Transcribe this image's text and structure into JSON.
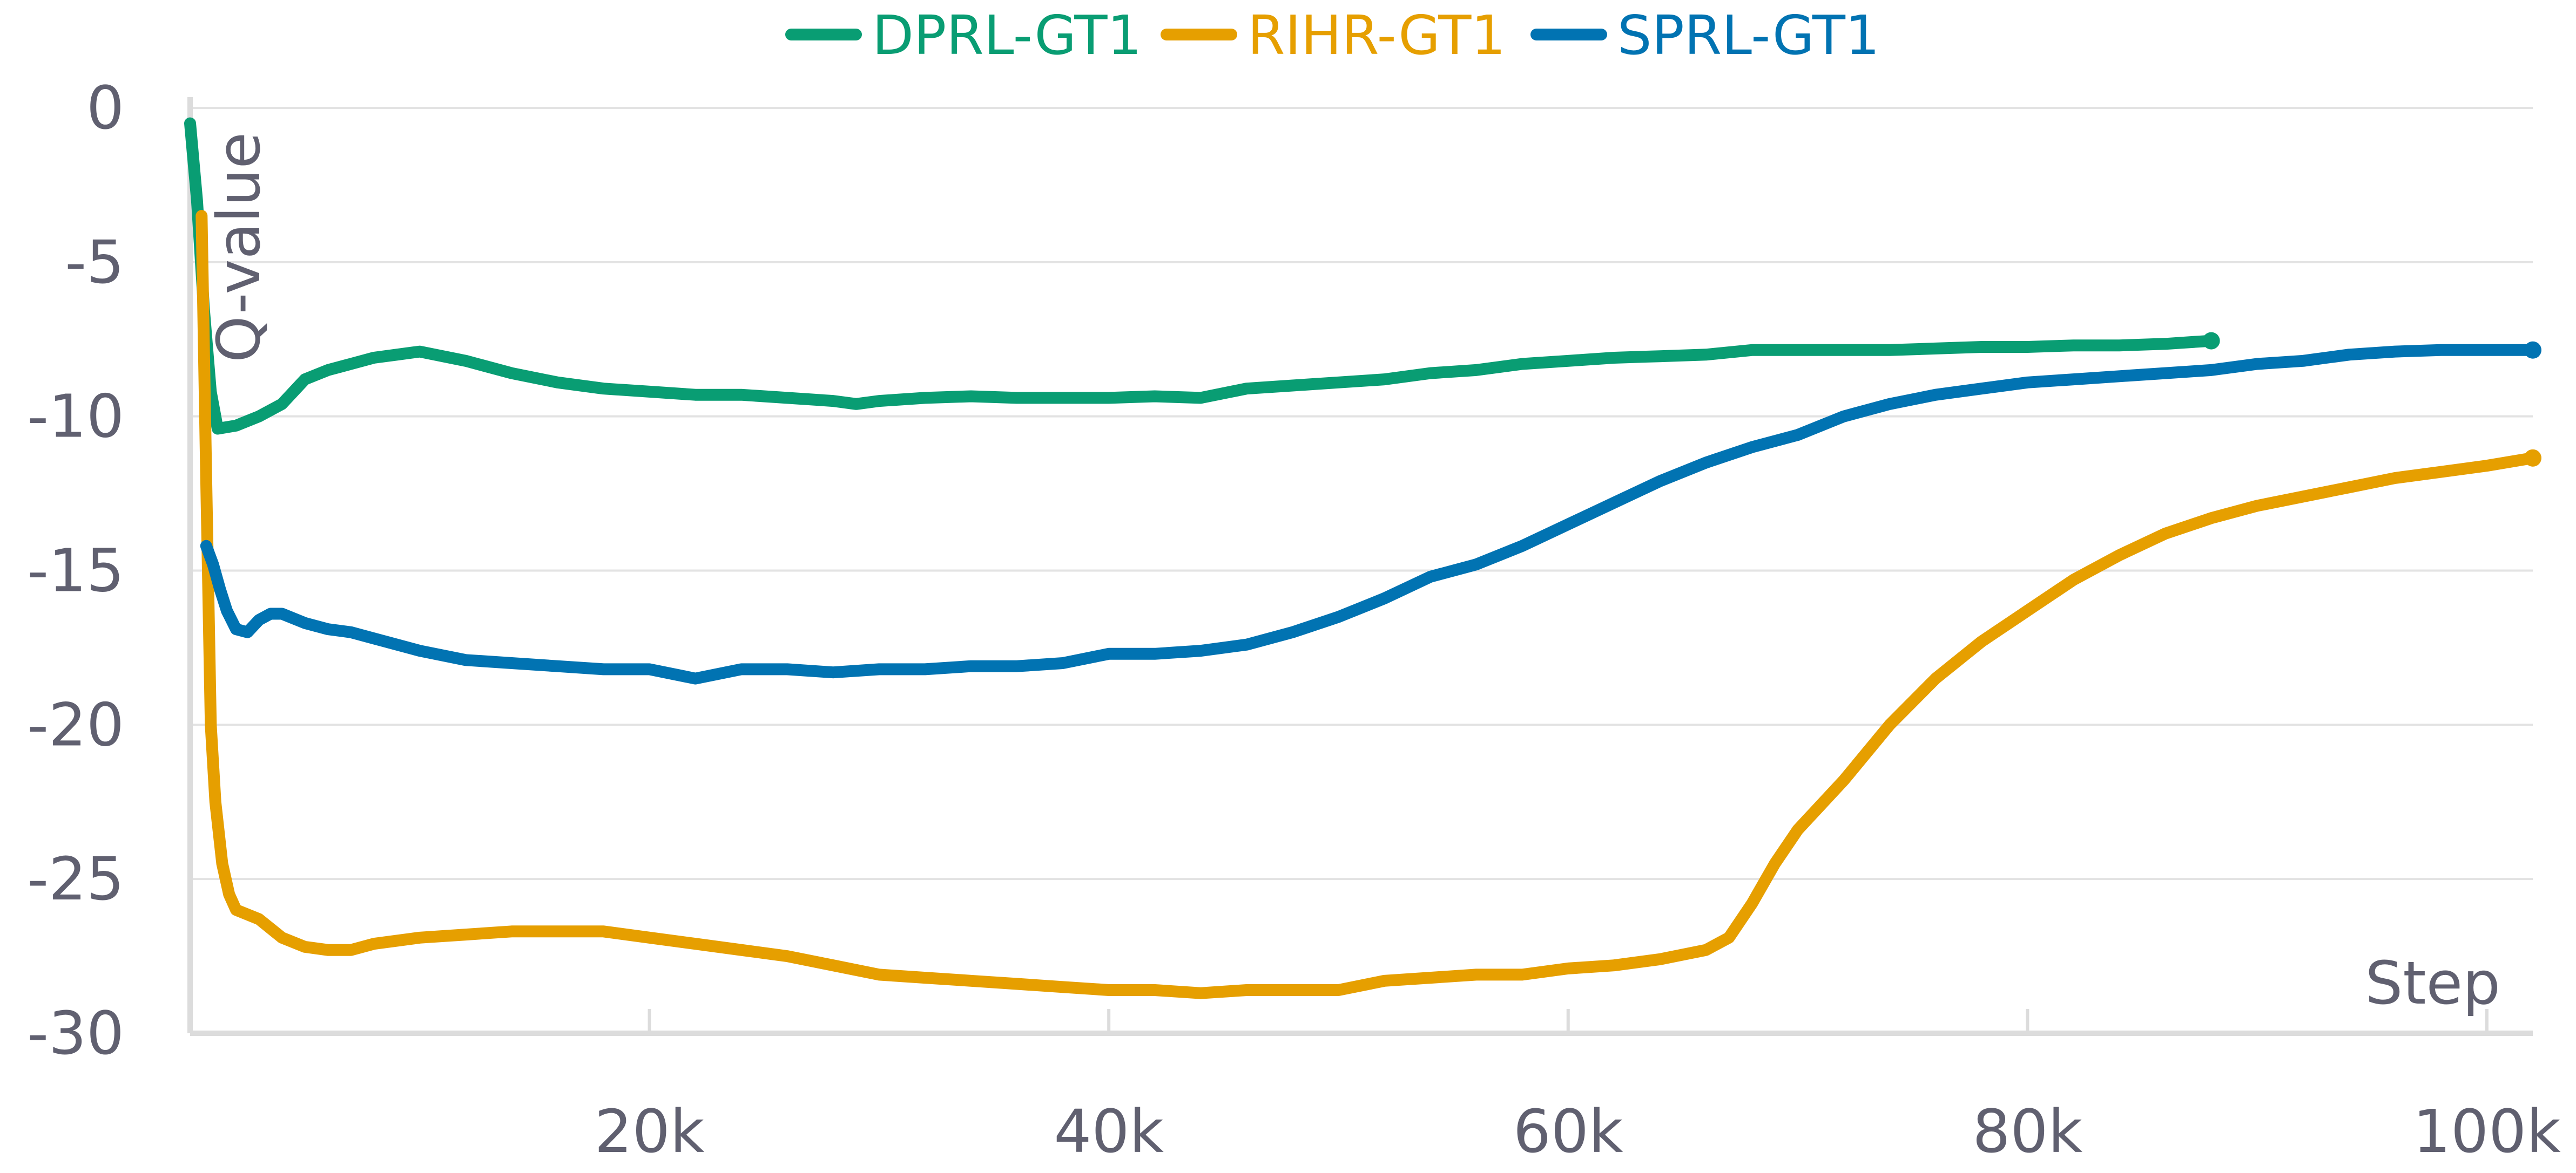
{
  "chart_data": {
    "type": "line",
    "title": "",
    "xlabel": "Step",
    "ylabel": "Q-value",
    "xlim": [
      0,
      102000
    ],
    "ylim": [
      -30,
      0
    ],
    "grid": true,
    "legend_position": "top-center",
    "x_ticks": [
      {
        "value": 20000,
        "label": "20k"
      },
      {
        "value": 40000,
        "label": "40k"
      },
      {
        "value": 60000,
        "label": "60k"
      },
      {
        "value": 80000,
        "label": "80k"
      },
      {
        "value": 100000,
        "label": "100k"
      }
    ],
    "y_ticks": [
      {
        "value": 0,
        "label": "0"
      },
      {
        "value": -5,
        "label": "-5"
      },
      {
        "value": -10,
        "label": "-10"
      },
      {
        "value": -15,
        "label": "-15"
      },
      {
        "value": -20,
        "label": "-20"
      },
      {
        "value": -25,
        "label": "-25"
      },
      {
        "value": -30,
        "label": "-30"
      }
    ],
    "series": [
      {
        "name": "DPRL-GT1",
        "color": "#099d73",
        "x": [
          0,
          300,
          600,
          900,
          1200,
          2000,
          3000,
          4000,
          5000,
          6000,
          7000,
          8000,
          9000,
          10000,
          12000,
          14000,
          16000,
          18000,
          20000,
          22000,
          24000,
          26000,
          28000,
          29000,
          30000,
          32000,
          34000,
          36000,
          38000,
          40000,
          42000,
          44000,
          46000,
          48000,
          50000,
          52000,
          54000,
          56000,
          58000,
          60000,
          62000,
          64000,
          66000,
          68000,
          70000,
          72000,
          74000,
          76000,
          78000,
          80000,
          82000,
          84000,
          86000,
          88000
        ],
        "values": [
          -0.5,
          -3.0,
          -6.5,
          -9.2,
          -10.4,
          -10.3,
          -10.0,
          -9.6,
          -8.8,
          -8.5,
          -8.3,
          -8.1,
          -8.0,
          -7.9,
          -8.2,
          -8.6,
          -8.9,
          -9.1,
          -9.2,
          -9.3,
          -9.3,
          -9.4,
          -9.5,
          -9.6,
          -9.5,
          -9.4,
          -9.35,
          -9.4,
          -9.4,
          -9.4,
          -9.35,
          -9.4,
          -9.1,
          -9.0,
          -8.9,
          -8.8,
          -8.6,
          -8.5,
          -8.3,
          -8.2,
          -8.1,
          -8.05,
          -8.0,
          -7.85,
          -7.85,
          -7.85,
          -7.85,
          -7.8,
          -7.75,
          -7.75,
          -7.7,
          -7.7,
          -7.65,
          -7.55
        ]
      },
      {
        "name": "RIHR-GT1",
        "color": "#e69f00",
        "x": [
          500,
          700,
          900,
          1100,
          1400,
          1700,
          2000,
          3000,
          4000,
          5000,
          6000,
          7000,
          8000,
          10000,
          12000,
          14000,
          16000,
          18000,
          20000,
          22000,
          24000,
          26000,
          28000,
          30000,
          32000,
          34000,
          36000,
          38000,
          40000,
          42000,
          44000,
          46000,
          48000,
          50000,
          52000,
          54000,
          56000,
          58000,
          60000,
          62000,
          64000,
          66000,
          67000,
          68000,
          69000,
          70000,
          71000,
          72000,
          73000,
          74000,
          76000,
          78000,
          80000,
          82000,
          84000,
          86000,
          88000,
          90000,
          92000,
          94000,
          96000,
          98000,
          100000,
          102000
        ],
        "values": [
          -3.5,
          -12.0,
          -20.0,
          -22.5,
          -24.5,
          -25.5,
          -26.0,
          -26.3,
          -26.9,
          -27.2,
          -27.3,
          -27.3,
          -27.1,
          -26.9,
          -26.8,
          -26.7,
          -26.7,
          -26.7,
          -26.9,
          -27.1,
          -27.3,
          -27.5,
          -27.8,
          -28.1,
          -28.2,
          -28.3,
          -28.4,
          -28.5,
          -28.6,
          -28.6,
          -28.7,
          -28.6,
          -28.6,
          -28.6,
          -28.3,
          -28.2,
          -28.1,
          -28.1,
          -27.9,
          -27.8,
          -27.6,
          -27.3,
          -26.9,
          -25.8,
          -24.5,
          -23.4,
          -22.6,
          -21.8,
          -20.9,
          -20.0,
          -18.5,
          -17.3,
          -16.3,
          -15.3,
          -14.5,
          -13.8,
          -13.3,
          -12.9,
          -12.6,
          -12.3,
          -12.0,
          -11.8,
          -11.6,
          -11.35
        ]
      },
      {
        "name": "SPRL-GT1",
        "color": "#0173b2",
        "x": [
          700,
          1000,
          1300,
          1600,
          2000,
          2500,
          3000,
          3500,
          4000,
          5000,
          6000,
          7000,
          8000,
          10000,
          12000,
          14000,
          16000,
          18000,
          20000,
          22000,
          24000,
          26000,
          28000,
          30000,
          32000,
          34000,
          36000,
          38000,
          40000,
          42000,
          44000,
          46000,
          48000,
          50000,
          52000,
          54000,
          56000,
          58000,
          60000,
          62000,
          64000,
          66000,
          68000,
          70000,
          72000,
          74000,
          76000,
          78000,
          80000,
          82000,
          84000,
          86000,
          88000,
          90000,
          92000,
          94000,
          96000,
          98000,
          100000,
          102000
        ],
        "values": [
          -14.2,
          -14.8,
          -15.6,
          -16.3,
          -16.9,
          -17.0,
          -16.6,
          -16.4,
          -16.4,
          -16.7,
          -16.9,
          -17.0,
          -17.2,
          -17.6,
          -17.9,
          -18.0,
          -18.1,
          -18.2,
          -18.2,
          -18.5,
          -18.2,
          -18.2,
          -18.3,
          -18.2,
          -18.2,
          -18.1,
          -18.1,
          -18.0,
          -17.7,
          -17.7,
          -17.6,
          -17.4,
          -17.0,
          -16.5,
          -15.9,
          -15.2,
          -14.8,
          -14.2,
          -13.5,
          -12.8,
          -12.1,
          -11.5,
          -11.0,
          -10.6,
          -10.0,
          -9.6,
          -9.3,
          -9.1,
          -8.9,
          -8.8,
          -8.7,
          -8.6,
          -8.5,
          -8.3,
          -8.2,
          -8.0,
          -7.9,
          -7.85,
          -7.85,
          -7.85
        ]
      }
    ]
  }
}
